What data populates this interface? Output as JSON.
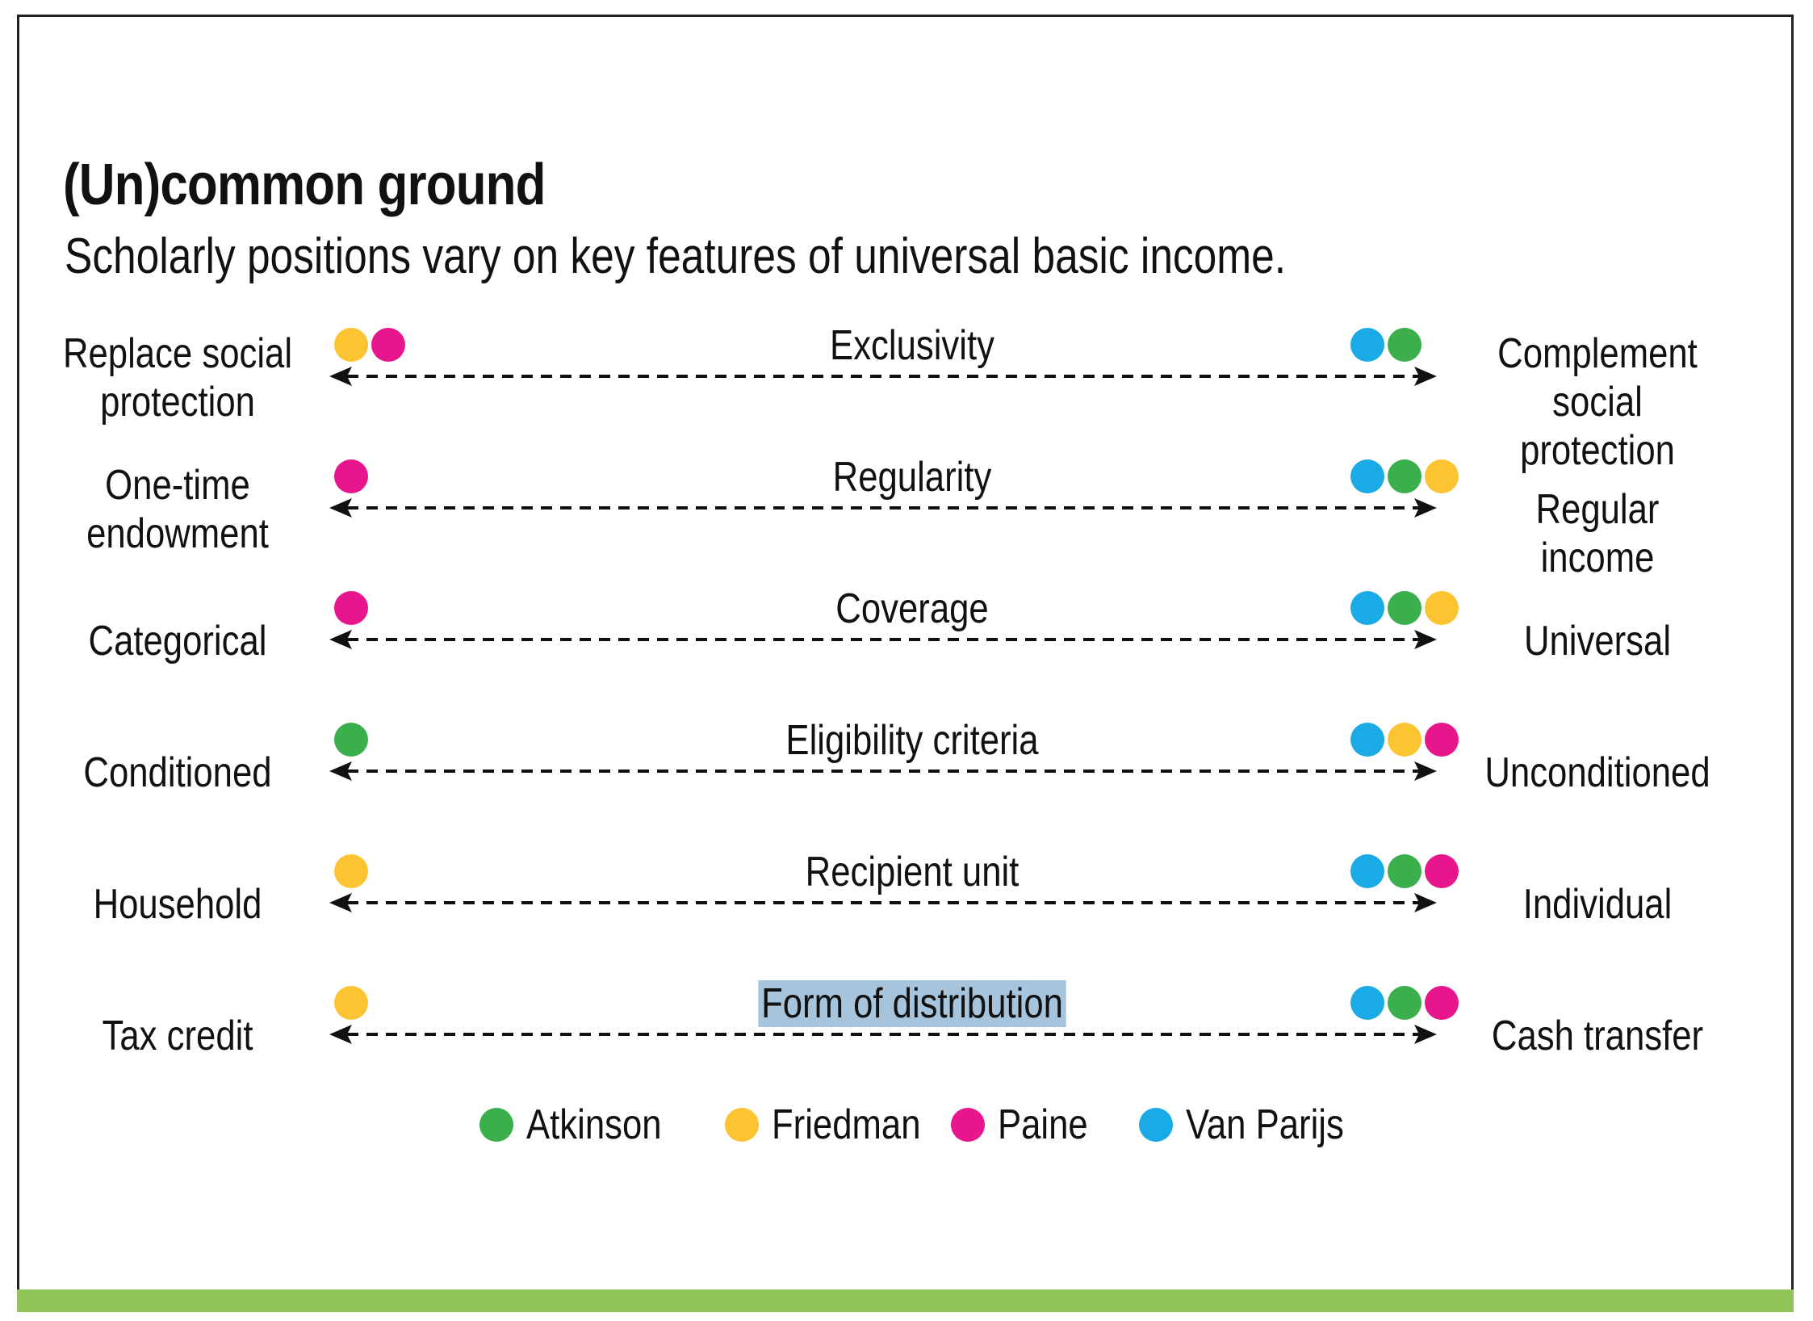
{
  "title": "(Un)common ground",
  "subtitle": "Scholarly positions vary on key features of universal basic income.",
  "colors": {
    "Atkinson": "#3aaf4c",
    "Friedman": "#fdc432",
    "Paine": "#e8168d",
    "Van Parijs": "#1aabe6",
    "footer_bar": "#92c557",
    "highlight": "#a6c4dc"
  },
  "legend": [
    {
      "name": "Atkinson"
    },
    {
      "name": "Friedman"
    },
    {
      "name": "Paine"
    },
    {
      "name": "Van Parijs"
    }
  ],
  "rows": [
    {
      "dimension": "Exclusivity",
      "left": "Replace social protection",
      "right": "Complement social protection",
      "left_scholars": [
        "Friedman",
        "Paine"
      ],
      "right_scholars": [
        "Van Parijs",
        "Atkinson"
      ]
    },
    {
      "dimension": "Regularity",
      "left": "One-time endowment",
      "right": "Regular income",
      "left_scholars": [
        "Paine"
      ],
      "right_scholars": [
        "Van Parijs",
        "Atkinson",
        "Friedman"
      ]
    },
    {
      "dimension": "Coverage",
      "left": "Categorical",
      "right": "Universal",
      "left_scholars": [
        "Paine"
      ],
      "right_scholars": [
        "Van Parijs",
        "Atkinson",
        "Friedman"
      ]
    },
    {
      "dimension": "Eligibility criteria",
      "left": "Conditioned",
      "right": "Unconditioned",
      "left_scholars": [
        "Atkinson"
      ],
      "right_scholars": [
        "Van Parijs",
        "Friedman",
        "Paine"
      ]
    },
    {
      "dimension": "Recipient unit",
      "left": "Household",
      "right": "Individual",
      "left_scholars": [
        "Friedman"
      ],
      "right_scholars": [
        "Van Parijs",
        "Atkinson",
        "Paine"
      ]
    },
    {
      "dimension": "Form of distribution",
      "left": "Tax credit",
      "right": "Cash transfer",
      "left_scholars": [
        "Friedman"
      ],
      "right_scholars": [
        "Van Parijs",
        "Atkinson",
        "Paine"
      ],
      "highlighted": true
    }
  ]
}
